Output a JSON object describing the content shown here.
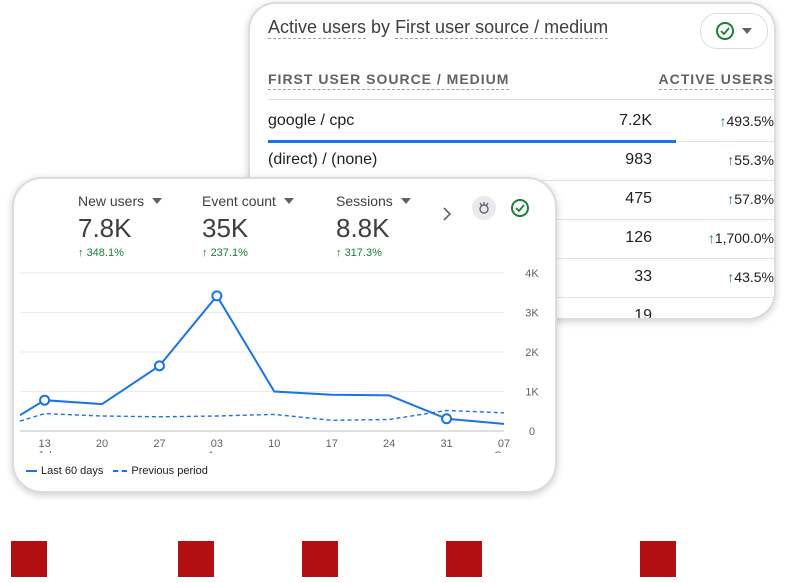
{
  "table_card": {
    "title_part1": "Active users",
    "title_by": " by ",
    "title_part2": "First user source / medium",
    "icons": {
      "status": "check-circle-icon",
      "menu": "chevron-down-icon"
    },
    "columns": {
      "source": "FIRST USER SOURCE / MEDIUM",
      "users": "ACTIVE USERS"
    },
    "rows": [
      {
        "source": "google / cpc",
        "value": "7.2K",
        "change": "493.5%",
        "bar_fraction": 1.0
      },
      {
        "source": "(direct) / (none)",
        "value": "983",
        "change": "55.3%",
        "bar_fraction": 0.14
      },
      {
        "source": "",
        "value": "475",
        "change": "57.8%",
        "bar_fraction": 0
      },
      {
        "source": "",
        "value": "126",
        "change": "1,700.0%",
        "bar_fraction": 0
      },
      {
        "source": "",
        "value": "33",
        "change": "43.5%",
        "bar_fraction": 0
      },
      {
        "source": "",
        "value": "19",
        "change": "",
        "bar_fraction": 0
      }
    ],
    "up_arrow": "↑"
  },
  "chart_card": {
    "metrics": [
      {
        "label": "New users",
        "value": "7.8K",
        "change": "348.1%"
      },
      {
        "label": "Event count",
        "value": "35K",
        "change": "237.1%"
      },
      {
        "label": "Sessions",
        "value": "8.8K",
        "change": "317.3%"
      }
    ],
    "up_arrow": "↑",
    "icons": {
      "next": "chevron-right-icon",
      "insights": "insights-icon",
      "status": "check-circle-icon"
    },
    "legend": {
      "current": "Last 60 days",
      "previous": "Previous period"
    }
  },
  "chart_data": {
    "type": "line",
    "x_ticks": [
      {
        "day": "13",
        "month": "Jul"
      },
      {
        "day": "20",
        "month": ""
      },
      {
        "day": "27",
        "month": ""
      },
      {
        "day": "03",
        "month": "Aug"
      },
      {
        "day": "10",
        "month": ""
      },
      {
        "day": "17",
        "month": ""
      },
      {
        "day": "24",
        "month": ""
      },
      {
        "day": "31",
        "month": ""
      },
      {
        "day": "07",
        "month": "Sep"
      }
    ],
    "y_ticks": [
      "0",
      "1K",
      "2K",
      "3K",
      "4K"
    ],
    "ylim": [
      0,
      4000
    ],
    "series": [
      {
        "name": "Last 60 days",
        "style": "solid",
        "points": [
          {
            "x": "2024-07-10",
            "y": 400
          },
          {
            "x": "2024-07-13",
            "y": 780
          },
          {
            "x": "2024-07-20",
            "y": 680
          },
          {
            "x": "2024-07-27",
            "y": 1650
          },
          {
            "x": "2024-08-03",
            "y": 3420
          },
          {
            "x": "2024-08-10",
            "y": 1000
          },
          {
            "x": "2024-08-17",
            "y": 920
          },
          {
            "x": "2024-08-24",
            "y": 900
          },
          {
            "x": "2024-08-31",
            "y": 310
          },
          {
            "x": "2024-09-07",
            "y": 180
          }
        ],
        "markers": [
          "2024-07-13",
          "2024-07-27",
          "2024-08-03",
          "2024-08-31"
        ]
      },
      {
        "name": "Previous period",
        "style": "dashed",
        "points": [
          {
            "x": "2024-07-10",
            "y": 250
          },
          {
            "x": "2024-07-13",
            "y": 440
          },
          {
            "x": "2024-07-20",
            "y": 380
          },
          {
            "x": "2024-07-27",
            "y": 360
          },
          {
            "x": "2024-08-03",
            "y": 380
          },
          {
            "x": "2024-08-10",
            "y": 420
          },
          {
            "x": "2024-08-17",
            "y": 270
          },
          {
            "x": "2024-08-24",
            "y": 290
          },
          {
            "x": "2024-08-31",
            "y": 520
          },
          {
            "x": "2024-09-07",
            "y": 460
          }
        ]
      }
    ],
    "line_color": "#1a73e8",
    "grid": true
  },
  "decor": {
    "square_color": "#b30f12"
  }
}
